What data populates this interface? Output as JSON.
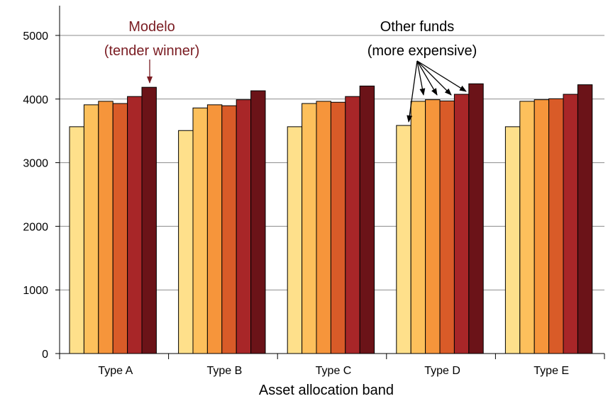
{
  "chart_data": {
    "type": "bar",
    "categories": [
      "Type A",
      "Type B",
      "Type C",
      "Type D",
      "Type E"
    ],
    "series": [
      {
        "values": [
          3565,
          3505,
          3565,
          3585,
          3565
        ],
        "color": "#fee08b"
      },
      {
        "values": [
          3910,
          3860,
          3930,
          3965,
          3965
        ],
        "color": "#fdc05c"
      },
      {
        "values": [
          3965,
          3910,
          3965,
          3990,
          3990
        ],
        "color": "#f6953b"
      },
      {
        "values": [
          3930,
          3895,
          3950,
          3970,
          4005
        ],
        "color": "#d95b28"
      },
      {
        "values": [
          4040,
          3990,
          4040,
          4075,
          4075
        ],
        "color": "#a82628"
      },
      {
        "values": [
          4185,
          4130,
          4205,
          4240,
          4225
        ],
        "color": "#6b1318"
      }
    ],
    "xlabel": "Asset allocation band",
    "ylabel": "",
    "ylim": [
      0,
      5000
    ],
    "yticks": [
      0,
      1000,
      2000,
      3000,
      4000,
      5000
    ],
    "grid": true,
    "legend": "none",
    "annotations": {
      "modelo": {
        "line1": "Modelo",
        "line2": "(tender winner)",
        "color": "#7a1c22"
      },
      "other_funds": {
        "line1": "Other funds",
        "line2": "(more expensive)"
      }
    }
  }
}
